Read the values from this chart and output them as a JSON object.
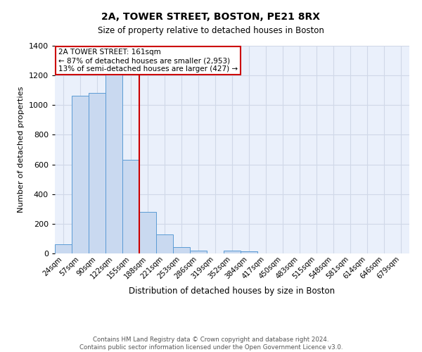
{
  "title1": "2A, TOWER STREET, BOSTON, PE21 8RX",
  "title2": "Size of property relative to detached houses in Boston",
  "xlabel": "Distribution of detached houses by size in Boston",
  "ylabel": "Number of detached properties",
  "categories": [
    "24sqm",
    "57sqm",
    "90sqm",
    "122sqm",
    "155sqm",
    "188sqm",
    "221sqm",
    "253sqm",
    "286sqm",
    "319sqm",
    "352sqm",
    "384sqm",
    "417sqm",
    "450sqm",
    "483sqm",
    "515sqm",
    "548sqm",
    "581sqm",
    "614sqm",
    "646sqm",
    "679sqm"
  ],
  "values": [
    62,
    1065,
    1080,
    1320,
    630,
    280,
    130,
    45,
    18,
    0,
    18,
    12,
    0,
    0,
    0,
    0,
    0,
    0,
    0,
    0,
    0
  ],
  "bar_color": "#c9d9f0",
  "bar_edge_color": "#5b9bd5",
  "red_line_x": 4.5,
  "annotation_title": "2A TOWER STREET: 161sqm",
  "annotation_line1": "← 87% of detached houses are smaller (2,953)",
  "annotation_line2": "13% of semi-detached houses are larger (427) →",
  "annotation_box_color": "#ffffff",
  "annotation_box_edge": "#cc0000",
  "red_line_color": "#cc0000",
  "grid_color": "#d0d8e8",
  "background_color": "#eaf0fb",
  "footer": "Contains HM Land Registry data © Crown copyright and database right 2024.\nContains public sector information licensed under the Open Government Licence v3.0.",
  "ylim": [
    0,
    1400
  ],
  "yticks": [
    0,
    200,
    400,
    600,
    800,
    1000,
    1200,
    1400
  ],
  "title1_fontsize": 10,
  "title2_fontsize": 8.5
}
